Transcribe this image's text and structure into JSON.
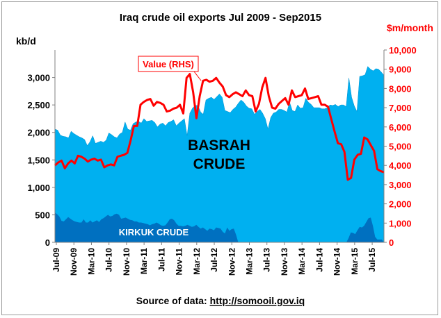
{
  "chart_data": {
    "type": "area",
    "title": "Iraq crude oil exports Jul 2009 - Sep2015",
    "ylabel": "kb/d",
    "y2label": "$m/month",
    "ylim": [
      0,
      3500
    ],
    "y2lim": [
      0,
      10000
    ],
    "yticks": [
      "0",
      "500",
      "1,000",
      "1,500",
      "2,000",
      "2,500",
      "3,000"
    ],
    "y2ticks": [
      "0",
      "1,000",
      "2,000",
      "3,000",
      "4,000",
      "5,000",
      "6,000",
      "7,000",
      "8,000",
      "9,000",
      "10,000"
    ],
    "xticks": [
      "Jul-09",
      "Nov-09",
      "Mar-10",
      "Jul-10",
      "Nov-10",
      "Mar-11",
      "Jul-11",
      "Nov-11",
      "Mar-12",
      "Jul-12",
      "Nov-12",
      "Mar-13",
      "Jul-13",
      "Nov-13",
      "Mar-14",
      "Jul-14",
      "Nov-14",
      "Mar-15",
      "Jul-15"
    ],
    "labels": {
      "basrah_line1": "BASRAH",
      "basrah_line2": "CRUDE",
      "kirkuk": "KIRKUK CRUDE"
    },
    "legend": {
      "value": "Value (RHS)"
    },
    "series": [
      {
        "name": "KIRKUK CRUDE",
        "axis": "left",
        "values": [
          540,
          510,
          470,
          390,
          380,
          420,
          460,
          430,
          400,
          380,
          370,
          360,
          360,
          420,
          360,
          360,
          400,
          360,
          380,
          400,
          370,
          420,
          440,
          470,
          500,
          470,
          480,
          510,
          520,
          500,
          430,
          440,
          450,
          430,
          410,
          400,
          380,
          380,
          360,
          360,
          350,
          340,
          330,
          310,
          330,
          340,
          360,
          340,
          310,
          300,
          310,
          360,
          420,
          430,
          400,
          340,
          300,
          300,
          290,
          300,
          320,
          300,
          280,
          290,
          320,
          280,
          250,
          270,
          240,
          210,
          250,
          240,
          220,
          270,
          260,
          250,
          190,
          160,
          270,
          210,
          240,
          250,
          140,
          0,
          0,
          0,
          0,
          0,
          0,
          0,
          0,
          0,
          0,
          0,
          0,
          0,
          0,
          0,
          0,
          0,
          0,
          0,
          0,
          0,
          0,
          0,
          0,
          0,
          0,
          0,
          0,
          0,
          0,
          0,
          0,
          0,
          0,
          0,
          0,
          0,
          0,
          0,
          0,
          0,
          0,
          0,
          0,
          0,
          0,
          0,
          0,
          0,
          0,
          80,
          180,
          170,
          150,
          220,
          280,
          270,
          300,
          370,
          440,
          450,
          300,
          100,
          50,
          50,
          50,
          0
        ]
      },
      {
        "name": "Total exports",
        "axis": "left",
        "values": [
          2060,
          2040,
          1950,
          1930,
          1920,
          1900,
          2020,
          1980,
          1950,
          1920,
          1900,
          1870,
          1760,
          1830,
          1940,
          1800,
          1820,
          1840,
          1820,
          1860,
          1990,
          1960,
          1920,
          1900,
          1970,
          2000,
          2190,
          2060,
          2040,
          2160,
          2190,
          2200,
          2170,
          2250,
          2200,
          2210,
          2220,
          2180,
          2100,
          2150,
          2170,
          2120,
          2180,
          2200,
          2230,
          2120,
          2170,
          2210,
          2250,
          1940,
          2350,
          2440,
          2490,
          2490,
          2370,
          2330,
          2590,
          2620,
          2640,
          2600,
          2650,
          2700,
          2640,
          2400,
          2380,
          2360,
          2420,
          2460,
          2530,
          2590,
          2550,
          2480,
          2440,
          2430,
          2330,
          2380,
          2420,
          2350,
          2250,
          2060,
          2270,
          2350,
          2370,
          2420,
          2420,
          2400,
          2370,
          2550,
          2400,
          2380,
          2500,
          2440,
          2450,
          2620,
          2550,
          2510,
          2450,
          2450,
          2450,
          2430,
          2430,
          2450,
          2500,
          2490,
          2510,
          2470,
          2500,
          2500,
          2470,
          2990,
          2640,
          2480,
          2380,
          3020,
          3030,
          3050,
          3200,
          3150,
          3120,
          3160,
          3150,
          3100,
          3040
        ]
      },
      {
        "name": "Value (RHS)",
        "axis": "right",
        "values": [
          4000,
          4150,
          4250,
          3850,
          4100,
          4250,
          4100,
          4500,
          4450,
          4350,
          4200,
          4300,
          4350,
          4250,
          4300,
          3900,
          4000,
          4050,
          4000,
          4450,
          4500,
          4550,
          4650,
          5300,
          6050,
          6050,
          7150,
          7300,
          7400,
          7450,
          7100,
          7300,
          7250,
          7150,
          6800,
          6850,
          6950,
          7000,
          7150,
          6700,
          8550,
          8750,
          7800,
          6450,
          7600,
          8400,
          8450,
          8350,
          8400,
          8550,
          8300,
          8100,
          7650,
          7550,
          7700,
          7800,
          7700,
          7600,
          7900,
          7650,
          7600,
          6800,
          7200,
          8050,
          8550,
          7600,
          7000,
          6950,
          7200,
          7350,
          7500,
          7150,
          7900,
          7550,
          7600,
          7650,
          8000,
          7450,
          7500,
          7550,
          7600,
          7150,
          7150,
          7050,
          6400,
          5750,
          5150,
          5100,
          4700,
          3250,
          3350,
          4300,
          4550,
          4600,
          5450,
          5350,
          5050,
          4750,
          3800,
          3700,
          3650
        ]
      }
    ],
    "source_prefix": "Source of data: ",
    "source_url": "http://somooil.gov.iq"
  },
  "colors": {
    "basrah": "#00b0f0",
    "kirkuk": "#0070c0",
    "value_line": "#ff0000"
  }
}
